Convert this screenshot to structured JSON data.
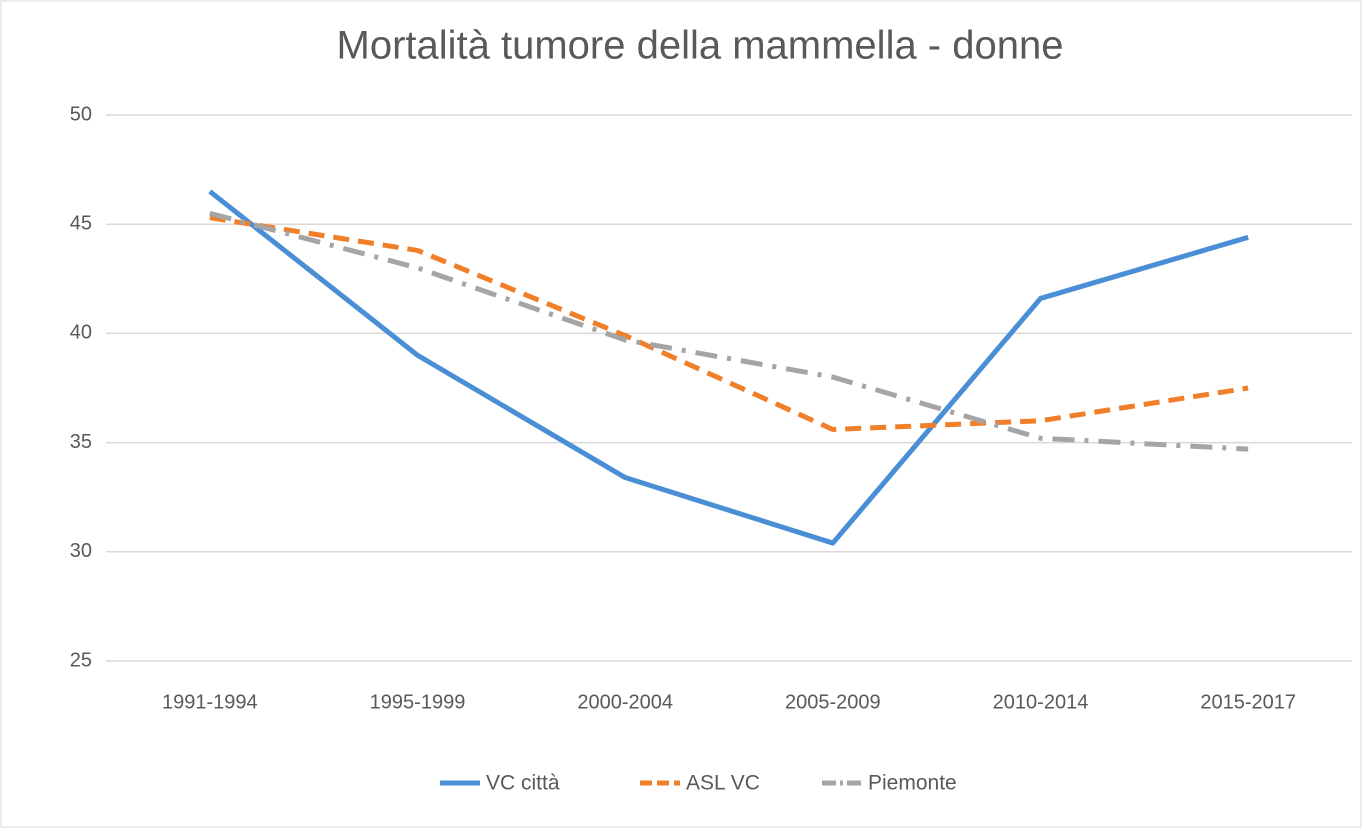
{
  "chart_data": {
    "type": "line",
    "title": "Mortalità tumore della mammella - donne",
    "categories": [
      "1991-1994",
      "1995-1999",
      "2000-2004",
      "2005-2009",
      "2010-2014",
      "2015-2017"
    ],
    "series": [
      {
        "name": "VC città",
        "color": "#4a8fd6",
        "line_style": "solid",
        "values": [
          46.5,
          39.0,
          33.4,
          30.4,
          41.6,
          44.4
        ]
      },
      {
        "name": "ASL VC",
        "color": "#f07f2a",
        "line_style": "dash",
        "values": [
          45.3,
          43.8,
          39.9,
          35.6,
          36.0,
          37.5
        ]
      },
      {
        "name": "Piemonte",
        "color": "#a5a5a5",
        "line_style": "dash-dot",
        "values": [
          45.5,
          43.0,
          39.7,
          38.0,
          35.2,
          34.7
        ]
      }
    ],
    "ylim": [
      25,
      50
    ],
    "yticks": [
      25,
      30,
      35,
      40,
      45,
      50
    ],
    "grid": true,
    "legend": "bottom"
  }
}
